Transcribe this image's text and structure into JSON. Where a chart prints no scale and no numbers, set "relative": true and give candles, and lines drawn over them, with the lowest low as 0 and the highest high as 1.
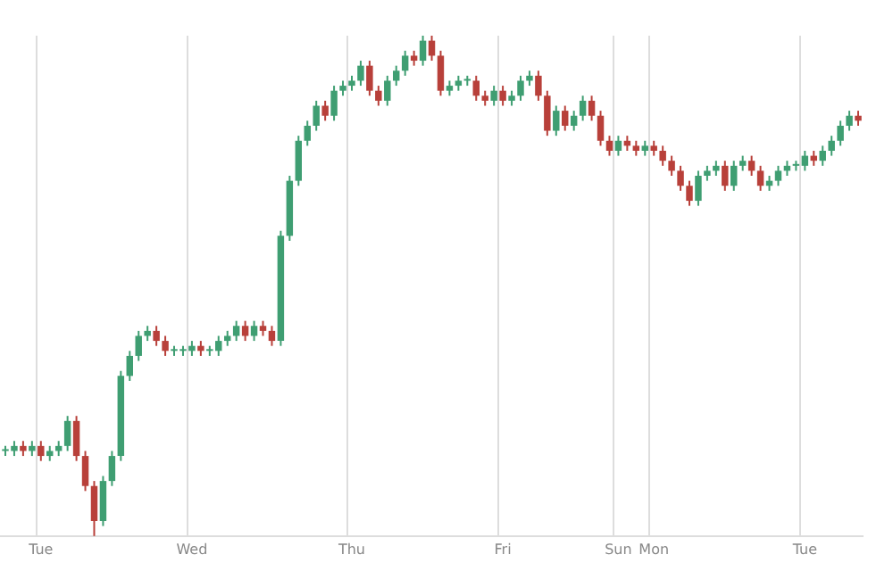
{
  "chart_data": {
    "type": "candlestick",
    "relative": true,
    "grid": "x",
    "categories": [
      null,
      null,
      null,
      null,
      "Tue",
      null,
      null,
      null,
      null,
      null,
      null,
      null,
      null,
      null,
      null,
      null,
      null,
      null,
      null,
      null,
      null,
      "Wed",
      null,
      null,
      null,
      null,
      null,
      null,
      null,
      null,
      null,
      null,
      null,
      null,
      null,
      null,
      null,
      null,
      null,
      "Thu",
      null,
      null,
      null,
      null,
      null,
      null,
      null,
      null,
      null,
      null,
      null,
      null,
      null,
      null,
      null,
      null,
      "Fri",
      null,
      null,
      null,
      null,
      null,
      null,
      null,
      null,
      null,
      null,
      null,
      null,
      "Sun",
      null,
      null,
      null,
      "Mon",
      null,
      null,
      null,
      null,
      null,
      null,
      null,
      null,
      null,
      null,
      null,
      null,
      null,
      null,
      null,
      null,
      "Tue",
      null,
      null,
      null,
      null,
      null,
      null
    ],
    "ohlc": [
      [
        0.17,
        0.18,
        0.16,
        0.17
      ],
      [
        0.17,
        0.19,
        0.16,
        0.18
      ],
      [
        0.18,
        0.19,
        0.16,
        0.17
      ],
      [
        0.17,
        0.19,
        0.16,
        0.18
      ],
      [
        0.18,
        0.19,
        0.15,
        0.16
      ],
      [
        0.16,
        0.18,
        0.15,
        0.17
      ],
      [
        0.17,
        0.19,
        0.16,
        0.18
      ],
      [
        0.18,
        0.24,
        0.17,
        0.23
      ],
      [
        0.23,
        0.24,
        0.15,
        0.16
      ],
      [
        0.16,
        0.17,
        0.09,
        0.1
      ],
      [
        0.1,
        0.11,
        0.0,
        0.03
      ],
      [
        0.03,
        0.12,
        0.02,
        0.11
      ],
      [
        0.11,
        0.17,
        0.1,
        0.16
      ],
      [
        0.16,
        0.33,
        0.15,
        0.32
      ],
      [
        0.32,
        0.37,
        0.31,
        0.36
      ],
      [
        0.36,
        0.41,
        0.35,
        0.4
      ],
      [
        0.4,
        0.42,
        0.39,
        0.41
      ],
      [
        0.41,
        0.42,
        0.38,
        0.39
      ],
      [
        0.39,
        0.4,
        0.36,
        0.37
      ],
      [
        0.37,
        0.38,
        0.36,
        0.37
      ],
      [
        0.37,
        0.38,
        0.36,
        0.37
      ],
      [
        0.37,
        0.39,
        0.36,
        0.38
      ],
      [
        0.38,
        0.39,
        0.36,
        0.37
      ],
      [
        0.37,
        0.38,
        0.36,
        0.37
      ],
      [
        0.37,
        0.4,
        0.36,
        0.39
      ],
      [
        0.39,
        0.41,
        0.38,
        0.4
      ],
      [
        0.4,
        0.43,
        0.39,
        0.42
      ],
      [
        0.42,
        0.43,
        0.39,
        0.4
      ],
      [
        0.4,
        0.43,
        0.39,
        0.42
      ],
      [
        0.42,
        0.43,
        0.4,
        0.41
      ],
      [
        0.41,
        0.42,
        0.38,
        0.39
      ],
      [
        0.39,
        0.61,
        0.38,
        0.6
      ],
      [
        0.6,
        0.72,
        0.59,
        0.71
      ],
      [
        0.71,
        0.8,
        0.7,
        0.79
      ],
      [
        0.79,
        0.83,
        0.78,
        0.82
      ],
      [
        0.82,
        0.87,
        0.81,
        0.86
      ],
      [
        0.86,
        0.87,
        0.83,
        0.84
      ],
      [
        0.84,
        0.9,
        0.83,
        0.89
      ],
      [
        0.89,
        0.91,
        0.88,
        0.9
      ],
      [
        0.9,
        0.92,
        0.89,
        0.91
      ],
      [
        0.91,
        0.95,
        0.9,
        0.94
      ],
      [
        0.94,
        0.95,
        0.88,
        0.89
      ],
      [
        0.89,
        0.9,
        0.86,
        0.87
      ],
      [
        0.87,
        0.92,
        0.86,
        0.91
      ],
      [
        0.91,
        0.94,
        0.9,
        0.93
      ],
      [
        0.93,
        0.97,
        0.92,
        0.96
      ],
      [
        0.96,
        0.97,
        0.94,
        0.95
      ],
      [
        0.95,
        1.0,
        0.94,
        0.99
      ],
      [
        0.99,
        1.0,
        0.95,
        0.96
      ],
      [
        0.96,
        0.97,
        0.88,
        0.89
      ],
      [
        0.89,
        0.91,
        0.88,
        0.9
      ],
      [
        0.9,
        0.92,
        0.89,
        0.91
      ],
      [
        0.91,
        0.92,
        0.9,
        0.91
      ],
      [
        0.91,
        0.92,
        0.87,
        0.88
      ],
      [
        0.88,
        0.89,
        0.86,
        0.87
      ],
      [
        0.87,
        0.9,
        0.86,
        0.89
      ],
      [
        0.89,
        0.9,
        0.86,
        0.87
      ],
      [
        0.87,
        0.89,
        0.86,
        0.88
      ],
      [
        0.88,
        0.92,
        0.87,
        0.91
      ],
      [
        0.91,
        0.93,
        0.9,
        0.92
      ],
      [
        0.92,
        0.93,
        0.87,
        0.88
      ],
      [
        0.88,
        0.89,
        0.8,
        0.81
      ],
      [
        0.81,
        0.86,
        0.8,
        0.85
      ],
      [
        0.85,
        0.86,
        0.81,
        0.82
      ],
      [
        0.82,
        0.85,
        0.81,
        0.84
      ],
      [
        0.84,
        0.88,
        0.83,
        0.87
      ],
      [
        0.87,
        0.88,
        0.83,
        0.84
      ],
      [
        0.84,
        0.85,
        0.78,
        0.79
      ],
      [
        0.79,
        0.8,
        0.76,
        0.77
      ],
      [
        0.77,
        0.8,
        0.76,
        0.79
      ],
      [
        0.79,
        0.8,
        0.77,
        0.78
      ],
      [
        0.78,
        0.79,
        0.76,
        0.77
      ],
      [
        0.77,
        0.79,
        0.76,
        0.78
      ],
      [
        0.78,
        0.79,
        0.76,
        0.77
      ],
      [
        0.77,
        0.78,
        0.74,
        0.75
      ],
      [
        0.75,
        0.76,
        0.72,
        0.73
      ],
      [
        0.73,
        0.74,
        0.69,
        0.7
      ],
      [
        0.7,
        0.71,
        0.66,
        0.67
      ],
      [
        0.67,
        0.73,
        0.66,
        0.72
      ],
      [
        0.72,
        0.74,
        0.71,
        0.73
      ],
      [
        0.73,
        0.75,
        0.72,
        0.74
      ],
      [
        0.74,
        0.75,
        0.69,
        0.7
      ],
      [
        0.7,
        0.75,
        0.69,
        0.74
      ],
      [
        0.74,
        0.76,
        0.73,
        0.75
      ],
      [
        0.75,
        0.76,
        0.72,
        0.73
      ],
      [
        0.73,
        0.74,
        0.69,
        0.7
      ],
      [
        0.7,
        0.72,
        0.69,
        0.71
      ],
      [
        0.71,
        0.74,
        0.7,
        0.73
      ],
      [
        0.73,
        0.75,
        0.72,
        0.74
      ],
      [
        0.74,
        0.75,
        0.73,
        0.74
      ],
      [
        0.74,
        0.77,
        0.73,
        0.76
      ],
      [
        0.76,
        0.77,
        0.74,
        0.75
      ],
      [
        0.75,
        0.78,
        0.74,
        0.77
      ],
      [
        0.77,
        0.8,
        0.76,
        0.79
      ],
      [
        0.79,
        0.83,
        0.78,
        0.82
      ],
      [
        0.82,
        0.85,
        0.81,
        0.84
      ],
      [
        0.84,
        0.85,
        0.82,
        0.83
      ]
    ]
  }
}
